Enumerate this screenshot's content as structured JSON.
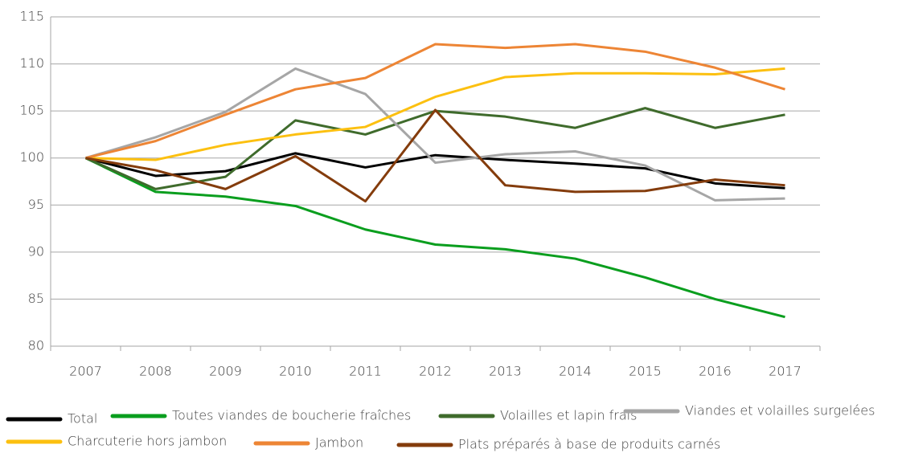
{
  "chart_data": {
    "type": "line",
    "categories": [
      "2007",
      "2008",
      "2009",
      "2010",
      "2011",
      "2012",
      "2013",
      "2014",
      "2015",
      "2016",
      "2017"
    ],
    "series": [
      {
        "name": "Total",
        "color": "#000000",
        "values": [
          100,
          98.1,
          98.6,
          100.5,
          99.0,
          100.3,
          99.8,
          99.4,
          98.9,
          97.3,
          96.8
        ]
      },
      {
        "name": "Toutes viandes de boucherie fraîches",
        "color": "#0a9e1e",
        "values": [
          100,
          96.4,
          95.9,
          94.9,
          92.4,
          90.8,
          90.3,
          89.3,
          87.3,
          85.0,
          83.1
        ]
      },
      {
        "name": "Volailles et lapin frais",
        "color": "#3f6b2c",
        "values": [
          100,
          96.7,
          98.0,
          104.0,
          102.5,
          105.0,
          104.4,
          103.2,
          105.3,
          103.2,
          104.6
        ]
      },
      {
        "name": "Viandes et volailles surgelées",
        "color": "#a6a6a6",
        "values": [
          100,
          102.2,
          104.9,
          109.5,
          106.8,
          99.5,
          100.4,
          100.7,
          99.2,
          95.5,
          95.7
        ]
      },
      {
        "name": "Charcuterie hors jambon",
        "color": "#fcc010",
        "values": [
          100,
          99.8,
          101.4,
          102.5,
          103.3,
          106.5,
          108.6,
          109.0,
          109.0,
          108.9,
          109.5
        ]
      },
      {
        "name": "Jambon",
        "color": "#ed8535",
        "values": [
          100,
          101.8,
          104.6,
          107.3,
          108.5,
          112.1,
          111.7,
          112.1,
          111.3,
          109.6,
          107.3
        ]
      },
      {
        "name": "Plats préparés à base de produits carnés",
        "color": "#843c0c",
        "values": [
          100,
          98.7,
          96.7,
          100.2,
          95.4,
          105.1,
          97.1,
          96.4,
          96.5,
          97.7,
          97.1
        ]
      }
    ],
    "ylim": [
      80,
      115
    ],
    "yticks": [
      80,
      85,
      90,
      95,
      100,
      105,
      110,
      115
    ],
    "grid": true
  }
}
